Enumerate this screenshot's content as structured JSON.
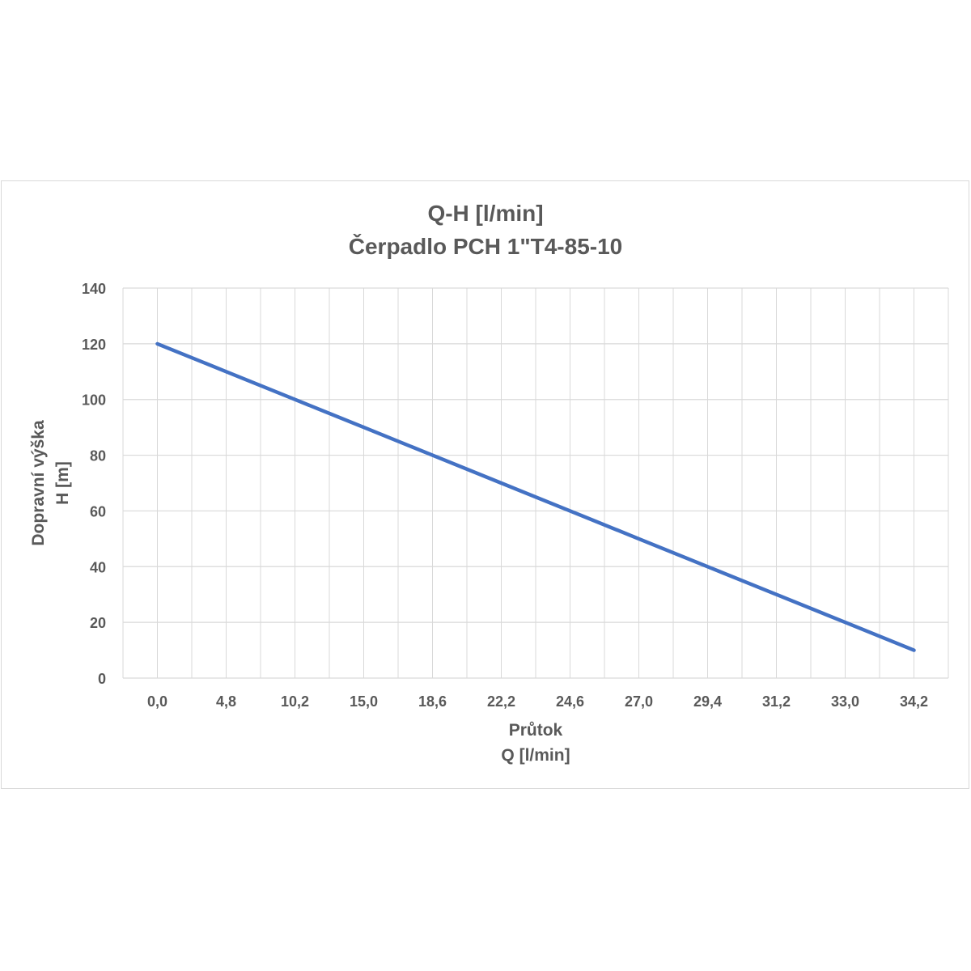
{
  "chart_data": {
    "type": "line",
    "title": [
      "Q-H [l/min]",
      "Čerpadlo PCH 1\"T4-85-10"
    ],
    "xlabel": [
      "Průtok",
      "Q [l/min]"
    ],
    "ylabel": [
      "Dopravní výška",
      "H [m]"
    ],
    "categories": [
      "0,0",
      "4,8",
      "10,2",
      "15,0",
      "18,6",
      "22,2",
      "24,6",
      "27,0",
      "29,4",
      "31,2",
      "33,0",
      "34,2"
    ],
    "series": [
      {
        "values": [
          120,
          110,
          100,
          90,
          80,
          70,
          60,
          50,
          40,
          30,
          20,
          10
        ],
        "color": "#4472c4"
      }
    ],
    "yticks": [
      "0",
      "20",
      "40",
      "60",
      "80",
      "100",
      "120",
      "140"
    ],
    "ylim": [
      0,
      140
    ],
    "grid": true,
    "legend": "none",
    "colors": {
      "grid": "#d9d9d9",
      "text": "#595959",
      "line": "#4472c4"
    }
  }
}
